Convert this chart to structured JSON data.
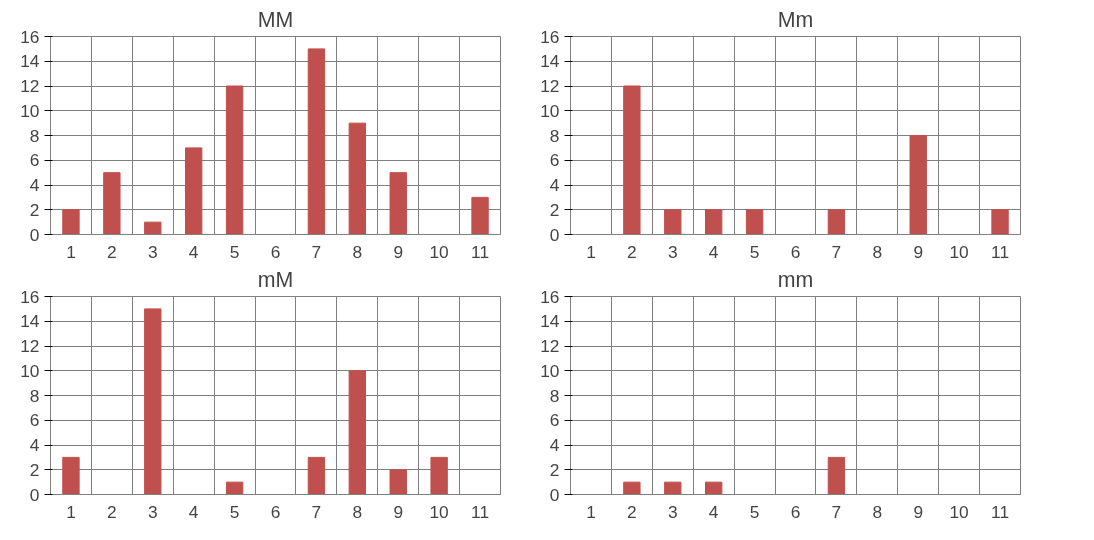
{
  "chart_data": [
    {
      "type": "bar",
      "title": "MM",
      "categories": [
        "1",
        "2",
        "3",
        "4",
        "5",
        "6",
        "7",
        "8",
        "9",
        "10",
        "11"
      ],
      "values": [
        2,
        5,
        1,
        7,
        12,
        0,
        15,
        9,
        5,
        0,
        3
      ],
      "color": "#c0504d",
      "ylim": [
        0,
        16
      ],
      "yticks": [
        0,
        2,
        4,
        6,
        8,
        10,
        12,
        14,
        16
      ],
      "grid": true
    },
    {
      "type": "bar",
      "title": "Mm",
      "categories": [
        "1",
        "2",
        "3",
        "4",
        "5",
        "6",
        "7",
        "8",
        "9",
        "10",
        "11"
      ],
      "values": [
        0,
        12,
        2,
        2,
        2,
        0,
        2,
        0,
        8,
        0,
        2
      ],
      "color": "#c0504d",
      "ylim": [
        0,
        16
      ],
      "yticks": [
        0,
        2,
        4,
        6,
        8,
        10,
        12,
        14,
        16
      ],
      "grid": true
    },
    {
      "type": "bar",
      "title": "mM",
      "categories": [
        "1",
        "2",
        "3",
        "4",
        "5",
        "6",
        "7",
        "8",
        "9",
        "10",
        "11"
      ],
      "values": [
        3,
        0,
        15,
        0,
        1,
        0,
        3,
        10,
        2,
        3,
        0
      ],
      "color": "#c0504d",
      "ylim": [
        0,
        16
      ],
      "yticks": [
        0,
        2,
        4,
        6,
        8,
        10,
        12,
        14,
        16
      ],
      "grid": true
    },
    {
      "type": "bar",
      "title": "mm",
      "categories": [
        "1",
        "2",
        "3",
        "4",
        "5",
        "6",
        "7",
        "8",
        "9",
        "10",
        "11"
      ],
      "values": [
        0,
        1,
        1,
        1,
        0,
        0,
        3,
        0,
        0,
        0,
        0
      ],
      "color": "#c0504d",
      "ylim": [
        0,
        16
      ],
      "yticks": [
        0,
        2,
        4,
        6,
        8,
        10,
        12,
        14,
        16
      ],
      "grid": true
    }
  ]
}
